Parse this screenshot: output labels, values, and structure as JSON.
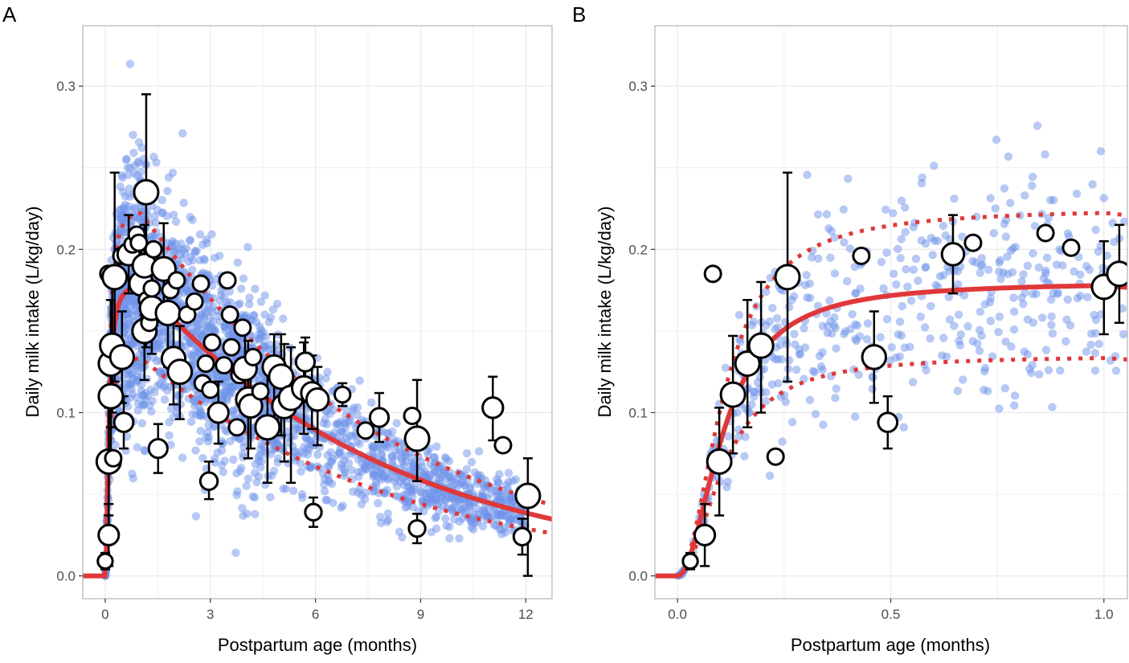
{
  "chart_data": [
    {
      "panel_label": "A",
      "type": "scatter",
      "xlabel": "Postpartum age (months)",
      "ylabel": "Daily milk intake (L/kg/day)",
      "xlim": [
        -0.64,
        12.75
      ],
      "ylim": [
        -0.014,
        0.337
      ],
      "x_ticks": [
        0,
        3,
        6,
        9,
        12
      ],
      "x_tick_labels": [
        "0",
        "3",
        "6",
        "9",
        "12"
      ],
      "y_ticks": [
        0.0,
        0.1,
        0.2,
        0.3
      ],
      "y_tick_labels": [
        "0.0",
        "0.1",
        "0.2",
        "0.3"
      ],
      "grid": true,
      "simulated_points": {
        "count": 2600,
        "x_range": [
          0,
          12
        ],
        "relative_sd": 0.22
      },
      "observed_means": [
        {
          "x": 0.0,
          "y": 0.009,
          "lo": 0.004,
          "hi": 0.014
        },
        {
          "x": 0.1,
          "y": 0.025,
          "lo": 0.006,
          "hi": 0.044
        },
        {
          "x": 0.1,
          "y": 0.07,
          "lo": 0.037,
          "hi": 0.103
        },
        {
          "x": 0.16,
          "y": 0.11,
          "lo": 0.075,
          "hi": 0.147
        },
        {
          "x": 0.16,
          "y": 0.13,
          "lo": 0.091,
          "hi": 0.169
        },
        {
          "x": 0.2,
          "y": 0.141,
          "lo": 0.1,
          "hi": 0.18
        },
        {
          "x": 0.09,
          "y": 0.185,
          "lo": null,
          "hi": null
        },
        {
          "x": 0.27,
          "y": 0.183,
          "lo": 0.119,
          "hi": 0.247
        },
        {
          "x": 0.23,
          "y": 0.072,
          "lo": null,
          "hi": null
        },
        {
          "x": 0.48,
          "y": 0.134,
          "lo": 0.106,
          "hi": 0.162
        },
        {
          "x": 0.53,
          "y": 0.094,
          "lo": 0.078,
          "hi": 0.11
        },
        {
          "x": 0.46,
          "y": 0.196,
          "lo": null,
          "hi": null
        },
        {
          "x": 0.67,
          "y": 0.197,
          "lo": 0.173,
          "hi": 0.221
        },
        {
          "x": 0.78,
          "y": 0.203,
          "lo": null,
          "hi": null
        },
        {
          "x": 0.9,
          "y": 0.209,
          "lo": null,
          "hi": null
        },
        {
          "x": 0.96,
          "y": 0.204,
          "lo": null,
          "hi": null
        },
        {
          "x": 1.17,
          "y": 0.235,
          "lo": 0.14,
          "hi": 0.295
        },
        {
          "x": 1.03,
          "y": 0.179,
          "lo": 0.148,
          "hi": 0.205
        },
        {
          "x": 1.12,
          "y": 0.19,
          "lo": 0.16,
          "hi": 0.215
        },
        {
          "x": 1.19,
          "y": 0.169,
          "lo": null,
          "hi": null
        },
        {
          "x": 1.12,
          "y": 0.15,
          "lo": 0.12,
          "hi": 0.18
        },
        {
          "x": 1.26,
          "y": 0.155,
          "lo": null,
          "hi": null
        },
        {
          "x": 1.33,
          "y": 0.164,
          "lo": 0.136,
          "hi": 0.192
        },
        {
          "x": 1.38,
          "y": 0.2,
          "lo": null,
          "hi": null
        },
        {
          "x": 1.33,
          "y": 0.176,
          "lo": null,
          "hi": null
        },
        {
          "x": 1.67,
          "y": 0.188,
          "lo": 0.16,
          "hi": 0.216
        },
        {
          "x": 1.51,
          "y": 0.078,
          "lo": 0.063,
          "hi": 0.093
        },
        {
          "x": 1.79,
          "y": 0.161,
          "lo": 0.128,
          "hi": 0.194
        },
        {
          "x": 1.86,
          "y": 0.175,
          "lo": null,
          "hi": null
        },
        {
          "x": 2.04,
          "y": 0.181,
          "lo": null,
          "hi": null
        },
        {
          "x": 1.95,
          "y": 0.133,
          "lo": 0.105,
          "hi": 0.16
        },
        {
          "x": 2.13,
          "y": 0.125,
          "lo": 0.096,
          "hi": 0.153
        },
        {
          "x": 2.34,
          "y": 0.16,
          "lo": null,
          "hi": null
        },
        {
          "x": 2.55,
          "y": 0.168,
          "lo": null,
          "hi": null
        },
        {
          "x": 2.73,
          "y": 0.179,
          "lo": null,
          "hi": null
        },
        {
          "x": 2.78,
          "y": 0.118,
          "lo": null,
          "hi": null
        },
        {
          "x": 2.87,
          "y": 0.13,
          "lo": null,
          "hi": null
        },
        {
          "x": 2.96,
          "y": 0.058,
          "lo": 0.047,
          "hi": 0.07
        },
        {
          "x": 3.0,
          "y": 0.114,
          "lo": null,
          "hi": null
        },
        {
          "x": 3.05,
          "y": 0.143,
          "lo": null,
          "hi": null
        },
        {
          "x": 3.23,
          "y": 0.1,
          "lo": 0.081,
          "hi": 0.119
        },
        {
          "x": 3.39,
          "y": 0.129,
          "lo": null,
          "hi": null
        },
        {
          "x": 3.49,
          "y": 0.181,
          "lo": null,
          "hi": null
        },
        {
          "x": 3.56,
          "y": 0.16,
          "lo": null,
          "hi": null
        },
        {
          "x": 3.6,
          "y": 0.14,
          "lo": null,
          "hi": null
        },
        {
          "x": 3.76,
          "y": 0.091,
          "lo": null,
          "hi": null
        },
        {
          "x": 3.83,
          "y": 0.123,
          "lo": null,
          "hi": null
        },
        {
          "x": 3.92,
          "y": 0.152,
          "lo": null,
          "hi": null
        },
        {
          "x": 3.99,
          "y": 0.127,
          "lo": 0.1,
          "hi": 0.154
        },
        {
          "x": 4.08,
          "y": 0.108,
          "lo": 0.072,
          "hi": 0.144
        },
        {
          "x": 4.15,
          "y": 0.104,
          "lo": 0.078,
          "hi": 0.13
        },
        {
          "x": 4.22,
          "y": 0.134,
          "lo": null,
          "hi": null
        },
        {
          "x": 4.43,
          "y": 0.113,
          "lo": null,
          "hi": null
        },
        {
          "x": 4.63,
          "y": 0.091,
          "lo": 0.057,
          "hi": 0.125
        },
        {
          "x": 4.82,
          "y": 0.128,
          "lo": 0.096,
          "hi": 0.148
        },
        {
          "x": 5.02,
          "y": 0.122,
          "lo": 0.086,
          "hi": 0.148
        },
        {
          "x": 5.11,
          "y": 0.104,
          "lo": 0.07,
          "hi": 0.142
        },
        {
          "x": 5.3,
          "y": 0.109,
          "lo": 0.057,
          "hi": 0.14
        },
        {
          "x": 5.71,
          "y": 0.131,
          "lo": 0.116,
          "hi": 0.146
        },
        {
          "x": 5.67,
          "y": 0.115,
          "lo": 0.087,
          "hi": 0.143
        },
        {
          "x": 5.9,
          "y": 0.112,
          "lo": 0.09,
          "hi": 0.135
        },
        {
          "x": 6.06,
          "y": 0.108,
          "lo": 0.08,
          "hi": 0.128
        },
        {
          "x": 5.94,
          "y": 0.039,
          "lo": 0.03,
          "hi": 0.048
        },
        {
          "x": 6.77,
          "y": 0.111,
          "lo": 0.104,
          "hi": 0.118
        },
        {
          "x": 7.43,
          "y": 0.089,
          "lo": null,
          "hi": null
        },
        {
          "x": 7.82,
          "y": 0.097,
          "lo": 0.082,
          "hi": 0.112
        },
        {
          "x": 8.76,
          "y": 0.098,
          "lo": null,
          "hi": null
        },
        {
          "x": 8.9,
          "y": 0.084,
          "lo": 0.058,
          "hi": 0.12
        },
        {
          "x": 8.9,
          "y": 0.029,
          "lo": 0.02,
          "hi": 0.038
        },
        {
          "x": 11.06,
          "y": 0.103,
          "lo": 0.083,
          "hi": 0.122
        },
        {
          "x": 11.35,
          "y": 0.08,
          "lo": null,
          "hi": null
        },
        {
          "x": 11.9,
          "y": 0.024,
          "lo": 0.013,
          "hi": 0.035
        },
        {
          "x": 12.06,
          "y": 0.049,
          "lo": 0.0,
          "hi": 0.072
        }
      ],
      "fit": {
        "peak": 0.18,
        "hill_c": 0.11,
        "hill_n": 2,
        "decay_rate_per_month": 0.14,
        "decay_start": 1.0,
        "band_upper_factor": 1.25,
        "band_lower_factor": 0.75
      }
    },
    {
      "panel_label": "B",
      "type": "scatter",
      "xlabel": "Postpartum age (months)",
      "ylabel": "Daily milk intake (L/kg/day)",
      "xlim": [
        -0.053,
        1.055
      ],
      "ylim": [
        -0.014,
        0.337
      ],
      "x_ticks": [
        0.0,
        0.5,
        1.0
      ],
      "x_tick_labels": [
        "0.0",
        "0.5",
        "1.0"
      ],
      "y_ticks": [
        0.0,
        0.1,
        0.2,
        0.3
      ],
      "y_tick_labels": [
        "0.0",
        "0.1",
        "0.2",
        "0.3"
      ],
      "grid": true,
      "simulated_points": {
        "count": 480,
        "x_range": [
          0,
          1.05
        ],
        "relative_sd": 0.2
      },
      "observed_means": [
        {
          "x": 0.03,
          "y": 0.009,
          "lo": 0.004,
          "hi": 0.014
        },
        {
          "x": 0.064,
          "y": 0.025,
          "lo": 0.006,
          "hi": 0.044
        },
        {
          "x": 0.083,
          "y": 0.185,
          "lo": null,
          "hi": null
        },
        {
          "x": 0.098,
          "y": 0.07,
          "lo": 0.037,
          "hi": 0.103
        },
        {
          "x": 0.13,
          "y": 0.111,
          "lo": 0.075,
          "hi": 0.147
        },
        {
          "x": 0.164,
          "y": 0.13,
          "lo": 0.091,
          "hi": 0.169
        },
        {
          "x": 0.196,
          "y": 0.141,
          "lo": 0.1,
          "hi": 0.18
        },
        {
          "x": 0.23,
          "y": 0.073,
          "lo": null,
          "hi": null
        },
        {
          "x": 0.258,
          "y": 0.183,
          "lo": 0.119,
          "hi": 0.247
        },
        {
          "x": 0.431,
          "y": 0.196,
          "lo": null,
          "hi": null
        },
        {
          "x": 0.461,
          "y": 0.134,
          "lo": 0.106,
          "hi": 0.162
        },
        {
          "x": 0.493,
          "y": 0.094,
          "lo": 0.078,
          "hi": 0.11
        },
        {
          "x": 0.646,
          "y": 0.197,
          "lo": 0.173,
          "hi": 0.221
        },
        {
          "x": 0.693,
          "y": 0.204,
          "lo": null,
          "hi": null
        },
        {
          "x": 0.863,
          "y": 0.21,
          "lo": null,
          "hi": null
        },
        {
          "x": 0.923,
          "y": 0.201,
          "lo": null,
          "hi": null
        },
        {
          "x": 1.0,
          "y": 0.177,
          "lo": 0.148,
          "hi": 0.205
        },
        {
          "x": 1.036,
          "y": 0.185,
          "lo": 0.155,
          "hi": 0.215
        }
      ],
      "fit": {
        "peak": 0.18,
        "hill_c": 0.11,
        "hill_n": 2,
        "decay_rate_per_month": 0.14,
        "decay_start": 1.0,
        "band_upper_factor": 1.25,
        "band_lower_factor": 0.75
      }
    }
  ],
  "colors": {
    "points": "#6f93ea",
    "fit": "#e0383a",
    "observed_fill": "#ffffff",
    "observed_stroke": "#000000",
    "grid": "#ebebeb",
    "border": "#b3b3b3",
    "tick_text": "#4d4d4d"
  }
}
